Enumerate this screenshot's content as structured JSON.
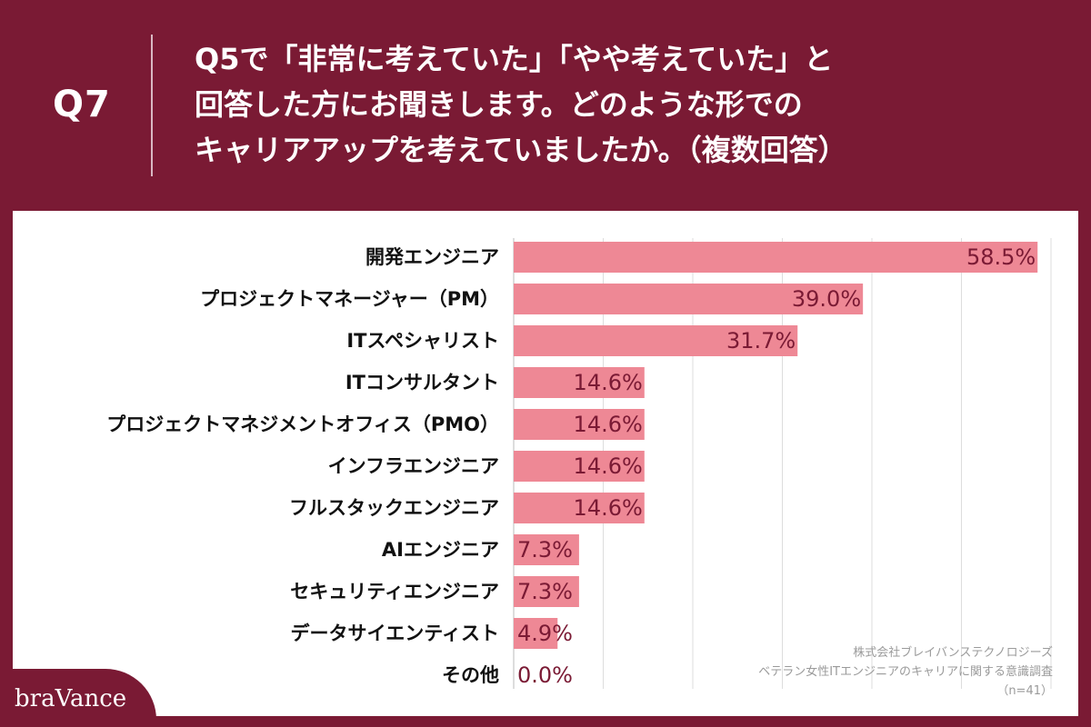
{
  "header": {
    "question_number": "Q7",
    "question_lines": [
      "Q5で「非常に考えていた」「やや考えていた」と",
      "回答した方にお聞きします。どのような形での",
      "キャリアアップを考えていましたか。（複数回答）"
    ]
  },
  "chart_data": {
    "type": "bar",
    "orientation": "horizontal",
    "categories": [
      "開発エンジニア",
      "プロジェクトマネージャー（PM）",
      "ITスペシャリスト",
      "ITコンサルタント",
      "プロジェクトマネジメントオフィス（PMO）",
      "インフラエンジニア",
      "フルスタックエンジニア",
      "AIエンジニア",
      "セキュリティエンジニア",
      "データサイエンティスト",
      "その他"
    ],
    "values": [
      58.5,
      39.0,
      31.7,
      14.6,
      14.6,
      14.6,
      14.6,
      7.3,
      7.3,
      4.9,
      0.0
    ],
    "value_labels": [
      "58.5%",
      "39.0%",
      "31.7%",
      "14.6%",
      "14.6%",
      "14.6%",
      "14.6%",
      "7.3%",
      "7.3%",
      "4.9%",
      "0.0%"
    ],
    "xlim": [
      0,
      60
    ],
    "grid": true,
    "bar_color": "#ee8895",
    "label_color": "#7a1a34"
  },
  "source_note": {
    "company": "株式会社ブレイバンステクノロジーズ",
    "survey": "ベテラン女性ITエンジニアのキャリアに関する意識調査",
    "sample": "（n=41）"
  },
  "brand": {
    "logo": "braVance"
  },
  "colors": {
    "background": "#7a1a34",
    "accent": "#ee8895"
  }
}
